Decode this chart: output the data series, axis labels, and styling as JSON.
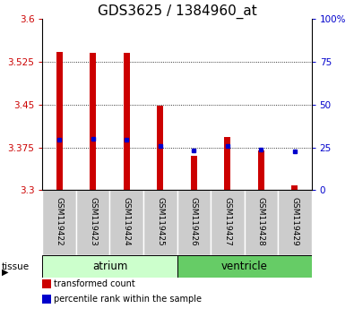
{
  "title": "GDS3625 / 1384960_at",
  "samples": [
    "GSM119422",
    "GSM119423",
    "GSM119424",
    "GSM119425",
    "GSM119426",
    "GSM119427",
    "GSM119428",
    "GSM119429"
  ],
  "bar_bottom": 3.3,
  "bar_tops": [
    3.543,
    3.54,
    3.541,
    3.448,
    3.36,
    3.393,
    3.37,
    3.308
  ],
  "percentile_values": [
    3.388,
    3.39,
    3.388,
    3.378,
    3.37,
    3.378,
    3.372,
    3.368
  ],
  "ylim_left": [
    3.3,
    3.6
  ],
  "ylim_right": [
    0,
    100
  ],
  "yticks_left": [
    3.3,
    3.375,
    3.45,
    3.525,
    3.6
  ],
  "yticks_right": [
    0,
    25,
    50,
    75,
    100
  ],
  "bar_color": "#cc0000",
  "percentile_color": "#0000cc",
  "title_fontsize": 11,
  "tick_color_left": "#cc0000",
  "tick_color_right": "#0000cc",
  "group_starts": [
    0,
    4
  ],
  "group_sizes": [
    4,
    4
  ],
  "group_labels": [
    "atrium",
    "ventricle"
  ],
  "group_colors": [
    "#ccffcc",
    "#66cc66"
  ],
  "sample_box_color": "#cccccc",
  "legend_items": [
    {
      "color": "#cc0000",
      "label": "transformed count"
    },
    {
      "color": "#0000cc",
      "label": "percentile rank within the sample"
    }
  ]
}
